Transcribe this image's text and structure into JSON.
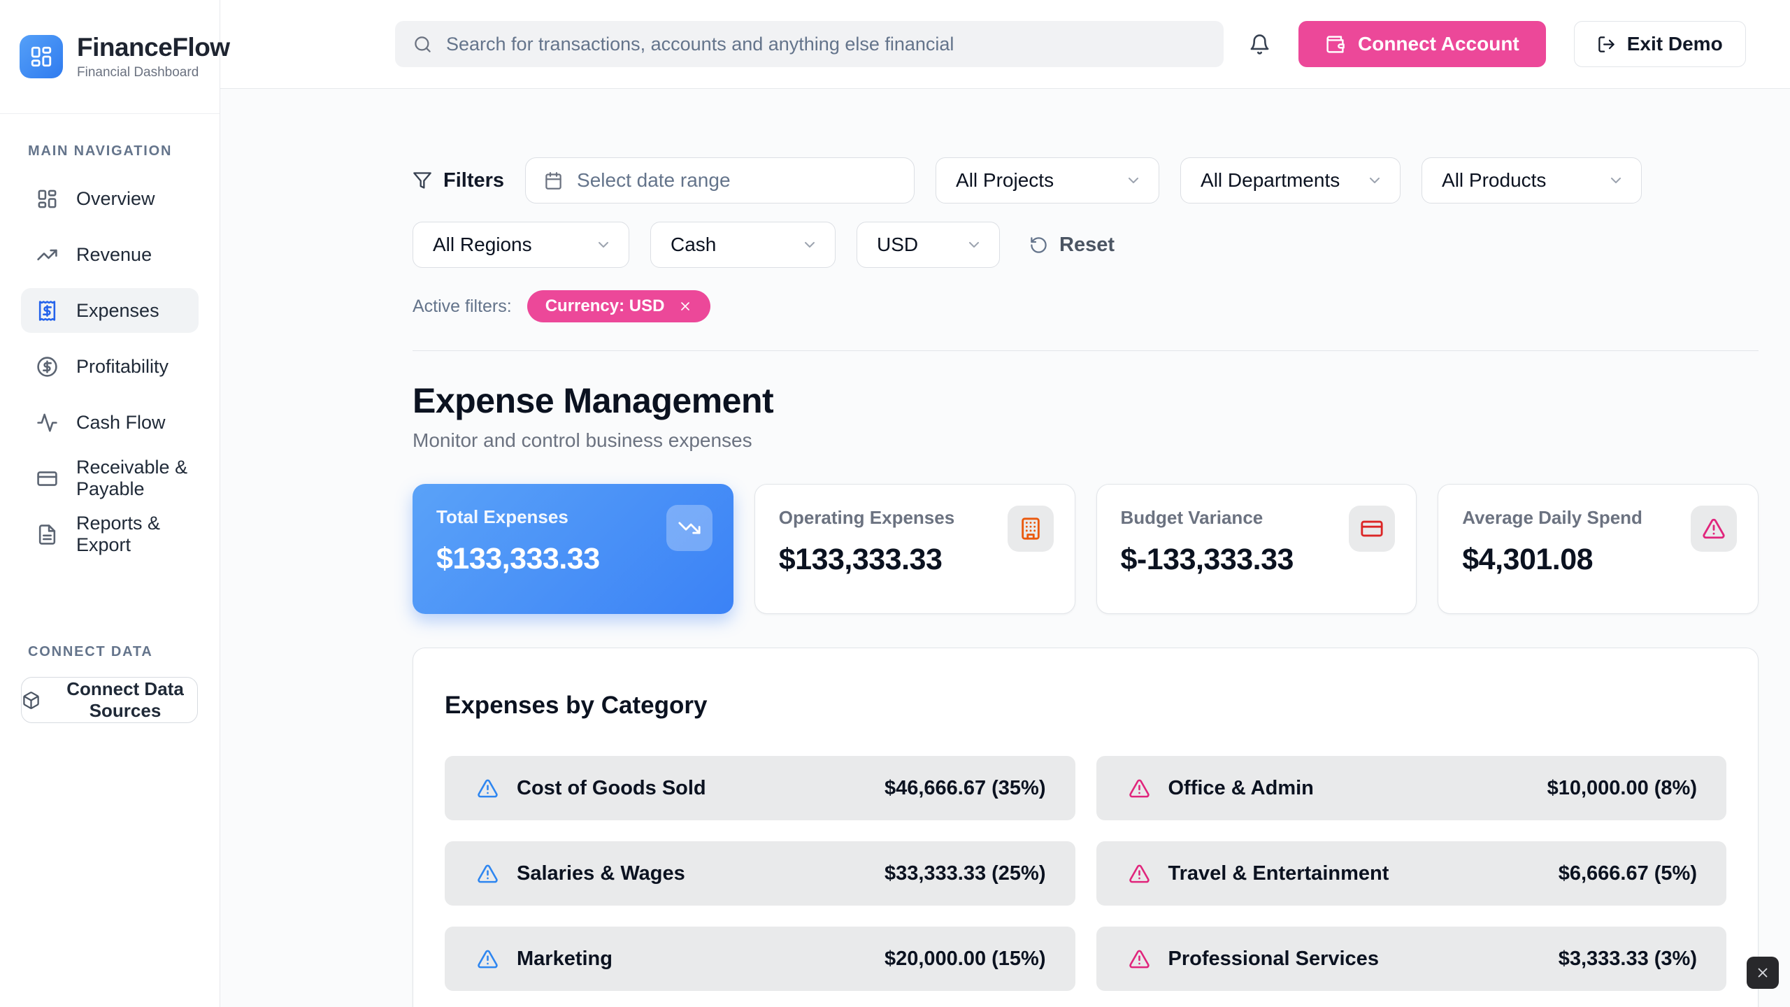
{
  "brand": {
    "name": "FinanceFlow",
    "subtitle": "Financial Dashboard"
  },
  "header": {
    "search_placeholder": "Search for transactions, accounts and anything else financial",
    "connect_account_label": "Connect Account",
    "exit_demo_label": "Exit Demo"
  },
  "sidebar": {
    "nav_section_label": "Main Navigation",
    "items": [
      {
        "label": "Overview",
        "icon": "layout-dashboard",
        "active": false
      },
      {
        "label": "Revenue",
        "icon": "trending-up",
        "active": false
      },
      {
        "label": "Expenses",
        "icon": "receipt",
        "active": true
      },
      {
        "label": "Profitability",
        "icon": "circle-dollar",
        "active": false
      },
      {
        "label": "Cash Flow",
        "icon": "activity",
        "active": false
      },
      {
        "label": "Receivable & Payable",
        "icon": "credit-card",
        "active": false
      },
      {
        "label": "Reports & Export",
        "icon": "file-text",
        "active": false
      }
    ],
    "connect_section_label": "Connect Data",
    "connect_button_label": "Connect Data Sources"
  },
  "filters": {
    "label": "Filters",
    "date_range_placeholder": "Select date range",
    "row1_selects": [
      "All Projects",
      "All Departments",
      "All Products"
    ],
    "row1_widths": [
      320,
      315,
      315
    ],
    "row2_selects": [
      "All Regions",
      "Cash",
      "USD"
    ],
    "row2_widths": [
      310,
      265,
      205
    ],
    "reset_label": "Reset",
    "active_filters_label": "Active filters:",
    "active_chip": "Currency: USD"
  },
  "page": {
    "title": "Expense Management",
    "subtitle": "Monitor and control business expenses"
  },
  "stats": [
    {
      "label": "Total Expenses",
      "value": "$133,333.33",
      "icon": "trending-down",
      "highlight": true,
      "icon_color": "#FFFFFF"
    },
    {
      "label": "Operating Expenses",
      "value": "$133,333.33",
      "icon": "building",
      "highlight": false,
      "icon_color": "#EA580C"
    },
    {
      "label": "Budget Variance",
      "value": "$-133,333.33",
      "icon": "credit-card",
      "highlight": false,
      "icon_color": "#DC2626"
    },
    {
      "label": "Average Daily Spend",
      "value": "$4,301.08",
      "icon": "alert-triangle",
      "highlight": false,
      "icon_color": "#E0257C"
    }
  ],
  "categories": {
    "title": "Expenses by Category",
    "items": [
      {
        "name": "Cost of Goods Sold",
        "amount": "$46,666.67 (35%)",
        "severity": "blue"
      },
      {
        "name": "Office & Admin",
        "amount": "$10,000.00 (8%)",
        "severity": "pink"
      },
      {
        "name": "Salaries & Wages",
        "amount": "$33,333.33 (25%)",
        "severity": "blue"
      },
      {
        "name": "Travel & Entertainment",
        "amount": "$6,666.67 (5%)",
        "severity": "pink"
      },
      {
        "name": "Marketing",
        "amount": "$20,000.00 (15%)",
        "severity": "blue"
      },
      {
        "name": "Professional Services",
        "amount": "$3,333.33 (3%)",
        "severity": "pink"
      }
    ]
  },
  "colors": {
    "accent_pink": "#EC4899",
    "accent_blue": "#3B82F6",
    "stat_orange": "#EA580C",
    "stat_red": "#DC2626",
    "warning_blue": "#2E86F0",
    "warning_pink": "#E0257C"
  }
}
